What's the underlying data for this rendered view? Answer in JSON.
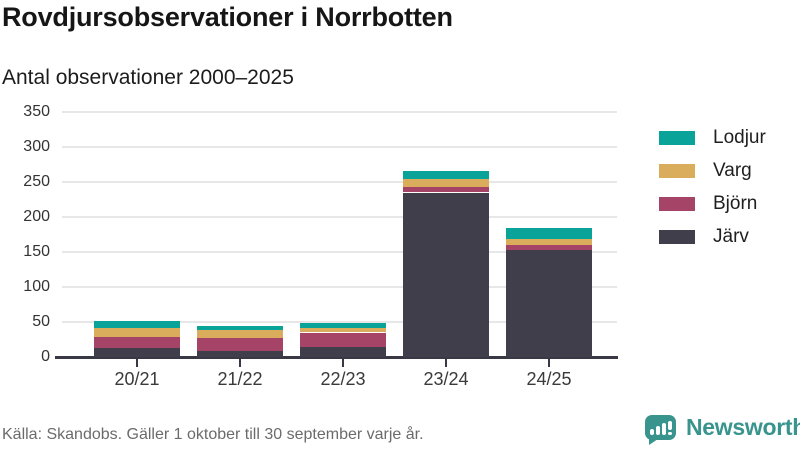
{
  "header": {
    "title": "Rovdjursobservationer i Norrbotten",
    "subtitle": "Antal observationer 2000–2025"
  },
  "chart_data": {
    "type": "bar",
    "stacked": true,
    "title": "Rovdjursobservationer i Norrbotten",
    "subtitle": "Antal observationer 2000–2025",
    "categories": [
      "20/21",
      "21/22",
      "22/23",
      "23/24",
      "24/25"
    ],
    "series": [
      {
        "name": "Järv",
        "color": "#413e4c",
        "values": [
          13,
          9,
          15,
          235,
          153
        ]
      },
      {
        "name": "Björn",
        "color": "#a54466",
        "values": [
          16,
          18,
          20,
          8,
          7
        ]
      },
      {
        "name": "Varg",
        "color": "#d9ad5c",
        "values": [
          12,
          11,
          6,
          11,
          9
        ]
      },
      {
        "name": "Lodjur",
        "color": "#0aa39a",
        "values": [
          11,
          7,
          8,
          12,
          16
        ]
      }
    ],
    "totals": [
      52,
      45,
      49,
      266,
      185
    ],
    "xlabel": "",
    "ylabel": "",
    "ylim": [
      0,
      350
    ],
    "yticks": [
      0,
      50,
      100,
      150,
      200,
      250,
      300,
      350
    ],
    "grid": true,
    "legend_position": "right",
    "legend_order_top_to_bottom": [
      "Lodjur",
      "Varg",
      "Björn",
      "Järv"
    ],
    "axis_color": "#393845",
    "grid_color": "#e7e7e7"
  },
  "footer": {
    "source": "Källa: Skandobs. Gäller 1 oktober till 30 september varje år."
  },
  "brand": {
    "name": "Newsworthy",
    "color": "#38948c"
  }
}
